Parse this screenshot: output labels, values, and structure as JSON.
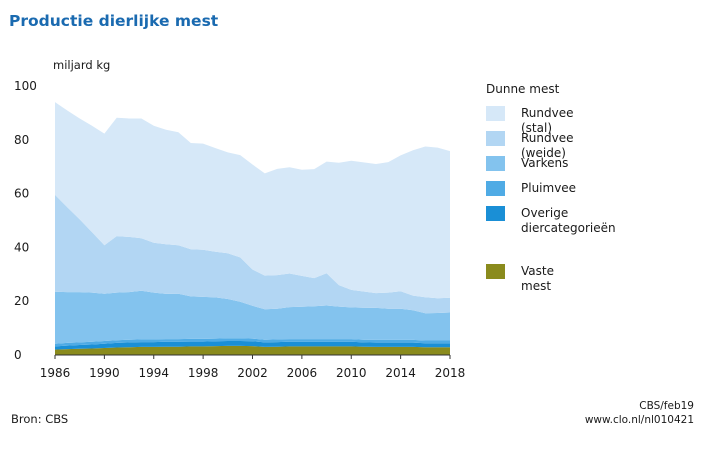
{
  "title": "Productie dierlijke mest",
  "source": "Bron: CBS",
  "credit_line1": "CBS/feb19",
  "credit_line2": "www.clo.nl/nl010421",
  "legend": {
    "heading": "Dunne mest",
    "items": [
      {
        "label": "Rundvee (stal)",
        "color": "#d6e8f8"
      },
      {
        "label": "Rundvee (weide)",
        "color": "#b2d6f3"
      },
      {
        "label": "Varkens",
        "color": "#83c3ee"
      },
      {
        "label": "Pluimvee",
        "color": "#4fabe5"
      },
      {
        "label": "Overige diercategorieën",
        "color": "#1a8fd6"
      }
    ],
    "vaste": {
      "label": "Vaste mest",
      "color": "#8a8b1d"
    }
  },
  "chart_data": {
    "type": "area",
    "stacked": true,
    "ylabel": "miljard kg",
    "ylim": [
      0,
      100
    ],
    "yticks": [
      0,
      20,
      40,
      60,
      80,
      100
    ],
    "xticks": [
      1986,
      1990,
      1994,
      1998,
      2002,
      2006,
      2010,
      2014,
      2018
    ],
    "x": [
      1986,
      1987,
      1988,
      1989,
      1990,
      1991,
      1992,
      1993,
      1994,
      1995,
      1996,
      1997,
      1998,
      1999,
      2000,
      2001,
      2002,
      2003,
      2004,
      2005,
      2006,
      2007,
      2008,
      2009,
      2010,
      2011,
      2012,
      2013,
      2014,
      2015,
      2016,
      2017,
      2018
    ],
    "series": [
      {
        "name": "Vaste mest",
        "color": "#8a8b1d",
        "values": [
          2.0,
          2.2,
          2.3,
          2.4,
          2.6,
          2.8,
          2.9,
          3.0,
          3.0,
          3.1,
          3.1,
          3.2,
          3.2,
          3.3,
          3.4,
          3.4,
          3.3,
          3.0,
          3.1,
          3.2,
          3.2,
          3.2,
          3.2,
          3.2,
          3.2,
          3.1,
          3.0,
          3.0,
          3.0,
          3.0,
          2.9,
          2.9,
          2.9
        ]
      },
      {
        "name": "Overige diercategorieën",
        "color": "#1a8fd6",
        "values": [
          1.2,
          1.3,
          1.4,
          1.5,
          1.6,
          1.7,
          1.8,
          1.8,
          1.8,
          1.8,
          1.8,
          1.8,
          1.8,
          1.8,
          1.8,
          1.8,
          1.8,
          1.7,
          1.7,
          1.7,
          1.7,
          1.7,
          1.7,
          1.7,
          1.7,
          1.6,
          1.6,
          1.6,
          1.6,
          1.6,
          1.5,
          1.5,
          1.5
        ]
      },
      {
        "name": "Pluimvee",
        "color": "#4fabe5",
        "values": [
          1.0,
          1.0,
          1.0,
          1.0,
          1.0,
          1.0,
          1.0,
          1.0,
          1.0,
          1.0,
          1.0,
          1.0,
          1.0,
          1.0,
          1.0,
          1.0,
          1.0,
          1.0,
          1.0,
          1.0,
          1.0,
          1.0,
          1.0,
          1.0,
          1.0,
          1.0,
          1.0,
          1.0,
          1.0,
          1.0,
          1.0,
          1.0,
          1.0
        ]
      },
      {
        "name": "Varkens",
        "color": "#83c3ee",
        "values": [
          19.3,
          18.9,
          18.7,
          18.3,
          17.6,
          17.7,
          17.7,
          18.1,
          17.4,
          16.8,
          16.9,
          15.8,
          15.6,
          15.3,
          14.6,
          13.6,
          12.2,
          11.3,
          11.4,
          11.9,
          12.0,
          12.2,
          12.5,
          12.1,
          11.8,
          11.9,
          11.9,
          11.6,
          11.6,
          11.0,
          10.1,
          10.2,
          10.4
        ]
      },
      {
        "name": "Rundvee (weide)",
        "color": "#b2d6f3",
        "values": [
          36.0,
          31.5,
          27.0,
          22.5,
          18.0,
          21.0,
          20.5,
          19.5,
          18.5,
          18.5,
          18.0,
          17.5,
          17.5,
          17.0,
          17.0,
          16.5,
          13.5,
          12.5,
          12.5,
          12.5,
          11.5,
          10.5,
          12.0,
          8.0,
          6.5,
          6.0,
          5.5,
          6.0,
          6.5,
          5.5,
          6.0,
          5.5,
          5.5
        ]
      },
      {
        "name": "Rundvee (stal)",
        "color": "#d6e8f8",
        "values": [
          34.5,
          36.0,
          37.5,
          39.5,
          41.5,
          44.0,
          44.0,
          44.5,
          43.5,
          42.5,
          42.0,
          39.5,
          39.5,
          38.5,
          37.5,
          38.0,
          39.0,
          38.0,
          39.5,
          39.5,
          39.5,
          40.5,
          41.5,
          45.5,
          48.0,
          48.0,
          48.0,
          48.5,
          50.5,
          54.0,
          56.0,
          56.0,
          54.5
        ]
      }
    ]
  }
}
